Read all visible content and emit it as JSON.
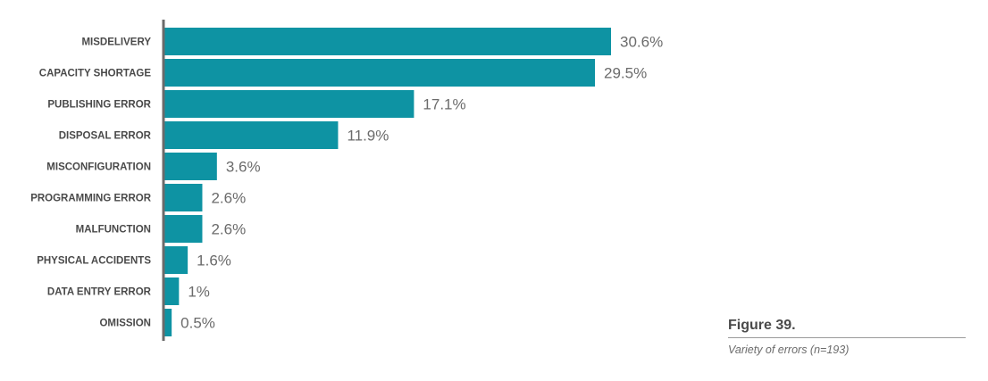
{
  "chart_data": {
    "type": "bar",
    "orientation": "horizontal",
    "categories": [
      "MISDELIVERY",
      "CAPACITY SHORTAGE",
      "PUBLISHING ERROR",
      "DISPOSAL ERROR",
      "MISCONFIGURATION",
      "PROGRAMMING ERROR",
      "MALFUNCTION",
      "PHYSICAL ACCIDENTS",
      "DATA ENTRY ERROR",
      "OMISSION"
    ],
    "values": [
      30.6,
      29.5,
      17.1,
      11.9,
      3.6,
      2.6,
      2.6,
      1.6,
      1,
      0.5
    ],
    "value_labels": [
      "30.6%",
      "29.5%",
      "17.1%",
      "11.9%",
      "3.6%",
      "2.6%",
      "2.6%",
      "1.6%",
      "1%",
      "0.5%"
    ],
    "bar_color": "#0e93a3",
    "grid": false,
    "xlim": [
      0,
      30.6
    ]
  },
  "figure": {
    "title": "Figure 39.",
    "caption": "Variety of errors (n=193)"
  }
}
